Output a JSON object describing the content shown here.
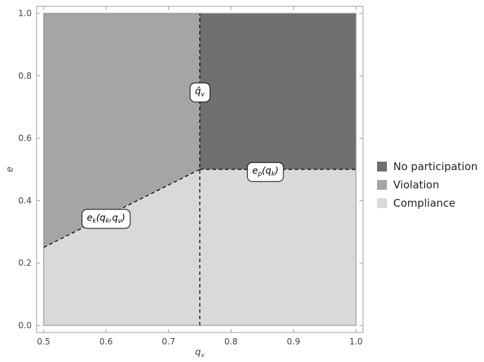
{
  "chart_data": {
    "type": "area",
    "title": "",
    "xlabel": "q",
    "xlabel_sub": "v",
    "ylabel": "e",
    "xlim": [
      0.5,
      1.0
    ],
    "ylim": [
      0.0,
      1.0
    ],
    "x_ticks": [
      "0.5",
      "0.6",
      "0.7",
      "0.8",
      "0.9",
      "1.0"
    ],
    "y_ticks": [
      "0.0",
      "0.2",
      "0.4",
      "0.6",
      "0.8",
      "1.0"
    ],
    "x_tick_values": [
      0.5,
      0.6,
      0.7,
      0.8,
      0.9,
      1.0
    ],
    "y_tick_values": [
      0.0,
      0.2,
      0.4,
      0.6,
      0.8,
      1.0
    ],
    "grid": false,
    "legend_position": "right",
    "regions": [
      {
        "name": "No participation",
        "color": "#707070",
        "polygon": [
          [
            0.75,
            0.5
          ],
          [
            1.0,
            0.5
          ],
          [
            1.0,
            1.0
          ],
          [
            0.75,
            1.0
          ]
        ]
      },
      {
        "name": "Violation",
        "color": "#a5a5a5",
        "polygon": [
          [
            0.5,
            0.25
          ],
          [
            0.75,
            0.5
          ],
          [
            0.75,
            1.0
          ],
          [
            0.5,
            1.0
          ]
        ]
      },
      {
        "name": "Compliance",
        "color": "#d9d9d9",
        "polygon": [
          [
            0.5,
            0.0
          ],
          [
            1.0,
            0.0
          ],
          [
            1.0,
            0.5
          ],
          [
            0.75,
            0.5
          ],
          [
            0.5,
            0.25
          ]
        ]
      }
    ],
    "boundaries": [
      {
        "name": "e_k(q_k,q_v)",
        "points": [
          [
            0.5,
            0.25
          ],
          [
            0.75,
            0.5
          ]
        ]
      },
      {
        "name": "e_p(q_k)",
        "points": [
          [
            0.75,
            0.5
          ],
          [
            1.0,
            0.5
          ]
        ]
      },
      {
        "name": "q̂_v",
        "points": [
          [
            0.75,
            0.0
          ],
          [
            0.75,
            1.0
          ]
        ]
      }
    ],
    "annotations": [
      {
        "id": "qhat",
        "main": "q̂",
        "sub": "v",
        "tail": "",
        "x": 0.75,
        "y": 0.75
      },
      {
        "id": "ep",
        "main": "e",
        "sub": "p",
        "tail": "(q",
        "tailsub": "k",
        "close": ")",
        "x": 0.855,
        "y": 0.495
      },
      {
        "id": "ek",
        "main": "e",
        "sub": "k",
        "tail": "(q",
        "tailsub": "k",
        "mid": ",q",
        "midsub": "v",
        "close": ")",
        "x": 0.6,
        "y": 0.345
      }
    ]
  },
  "legend": {
    "items": [
      {
        "label": "No participation",
        "color": "#707070"
      },
      {
        "label": "Violation",
        "color": "#a5a5a5"
      },
      {
        "label": "Compliance",
        "color": "#d9d9d9"
      }
    ]
  }
}
